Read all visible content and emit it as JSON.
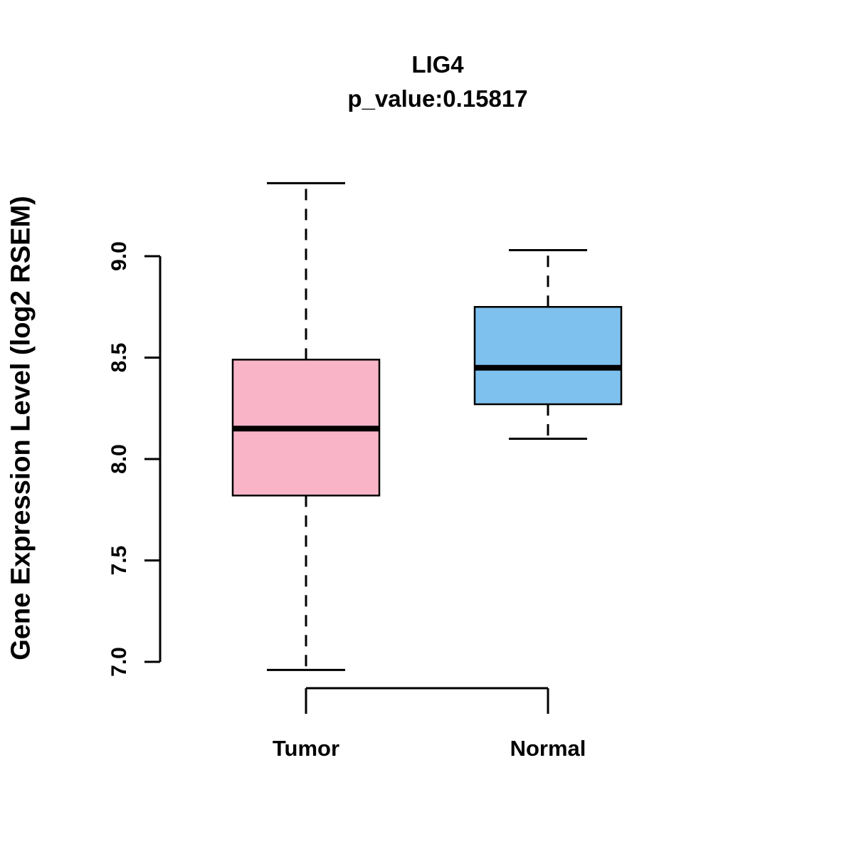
{
  "chart_data": {
    "type": "boxplot",
    "title": "LIG4",
    "subtitle": "p_value:0.15817",
    "ylabel": "Gene Expression Level (log2 RSEM)",
    "ytick_labels": [
      "7.0",
      "7.5",
      "8.0",
      "8.5",
      "9.0"
    ],
    "yticks": [
      7.0,
      7.5,
      8.0,
      8.5,
      9.0
    ],
    "ylim": [
      6.9,
      9.45
    ],
    "grid": false,
    "legend": "none",
    "categories": [
      "Tumor",
      "Normal"
    ],
    "series": [
      {
        "name": "Tumor",
        "color": "#F9B4C8",
        "min": 6.96,
        "q1": 7.82,
        "median": 8.15,
        "q3": 8.49,
        "max": 9.36
      },
      {
        "name": "Normal",
        "color": "#7EC0EE",
        "min": 8.1,
        "q1": 8.27,
        "median": 8.45,
        "q3": 8.75,
        "max": 9.03
      }
    ]
  }
}
